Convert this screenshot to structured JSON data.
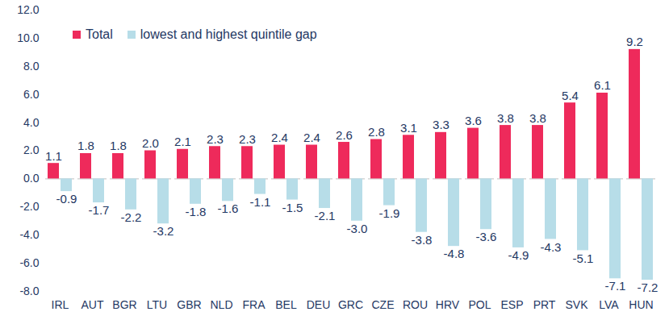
{
  "chart_data": {
    "type": "bar",
    "categories": [
      "IRL",
      "AUT",
      "BGR",
      "LTU",
      "GBR",
      "NLD",
      "FRA",
      "BEL",
      "DEU",
      "GRC",
      "CZE",
      "ROU",
      "HRV",
      "POL",
      "ESP",
      "PRT",
      "SVK",
      "LVA",
      "HUN"
    ],
    "series": [
      {
        "name": "Total",
        "color": "#EE2A5B",
        "values": [
          1.1,
          1.8,
          1.8,
          2.0,
          2.1,
          2.3,
          2.3,
          2.4,
          2.4,
          2.6,
          2.8,
          3.1,
          3.3,
          3.6,
          3.8,
          3.8,
          5.4,
          6.1,
          9.2
        ],
        "value_labels": [
          "1.1",
          "1.8",
          "1.8",
          "2.0",
          "2.1",
          "2.3",
          "2.3",
          "2.4",
          "2.4",
          "2.6",
          "2.8",
          "3.1",
          "3.3",
          "3.6",
          "3.8",
          "3.8",
          "5.4",
          "6.1",
          "9.2"
        ]
      },
      {
        "name": "lowest and highest quintile gap",
        "color": "#B7DDE8",
        "values": [
          -0.9,
          -1.7,
          -2.2,
          -3.2,
          -1.8,
          -1.6,
          -1.1,
          -1.5,
          -2.1,
          -3.0,
          -1.9,
          -3.8,
          -4.8,
          -3.6,
          -4.9,
          -4.3,
          -5.1,
          -7.1,
          -7.2
        ],
        "value_labels": [
          "-0.9",
          "-1.7",
          "-2.2",
          "-3.2",
          "-1.8",
          "-1.6",
          "-1.1",
          "-1.5",
          "-2.1",
          "-3.0",
          "-1.9",
          "-3.8",
          "-4.8",
          "-3.6",
          "-4.9",
          "-4.3",
          "-5.1",
          "-7.1",
          "-7.2"
        ]
      }
    ],
    "ylim": [
      -8,
      12
    ],
    "yticks": [
      {
        "value": -8,
        "label": "-8.0"
      },
      {
        "value": -6,
        "label": "-6.0"
      },
      {
        "value": -4,
        "label": "-4.0"
      },
      {
        "value": -2,
        "label": "-2.0"
      },
      {
        "value": 0,
        "label": "0.0"
      },
      {
        "value": 2,
        "label": "2.0"
      },
      {
        "value": 4,
        "label": "4.0"
      },
      {
        "value": 6,
        "label": "6.0"
      },
      {
        "value": 8,
        "label": "8.0"
      },
      {
        "value": 10,
        "label": "10.0"
      },
      {
        "value": 12,
        "label": "12.0"
      }
    ],
    "grid": false,
    "legend": "top-left",
    "data_labels": true
  }
}
